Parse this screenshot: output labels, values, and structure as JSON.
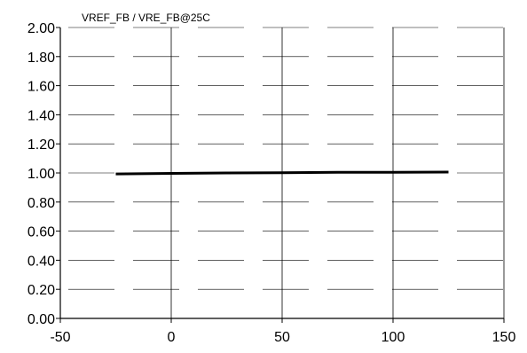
{
  "chart_data": {
    "type": "line",
    "title": "VREF_FB / VRE_FB@25C",
    "xlabel": "",
    "ylabel": "",
    "xlim": [
      -50,
      150
    ],
    "ylim": [
      0,
      2
    ],
    "x_ticks": [
      "-50",
      "0",
      "50",
      "100",
      "150"
    ],
    "y_ticks": [
      "0.00",
      "0.20",
      "0.40",
      "0.60",
      "0.80",
      "1.00",
      "1.20",
      "1.40",
      "1.60",
      "1.80",
      "2.00"
    ],
    "grid": {
      "horizontal": "dashed",
      "vertical": "solid"
    },
    "series": [
      {
        "x": [
          -25,
          0,
          25,
          50,
          75,
          100,
          125
        ],
        "y": [
          0.993,
          0.997,
          1.0,
          1.002,
          1.004,
          1.005,
          1.006
        ]
      }
    ]
  },
  "colors": {
    "line": "#000000",
    "grid": "#000000",
    "axis": "#000000",
    "background": "#ffffff"
  }
}
